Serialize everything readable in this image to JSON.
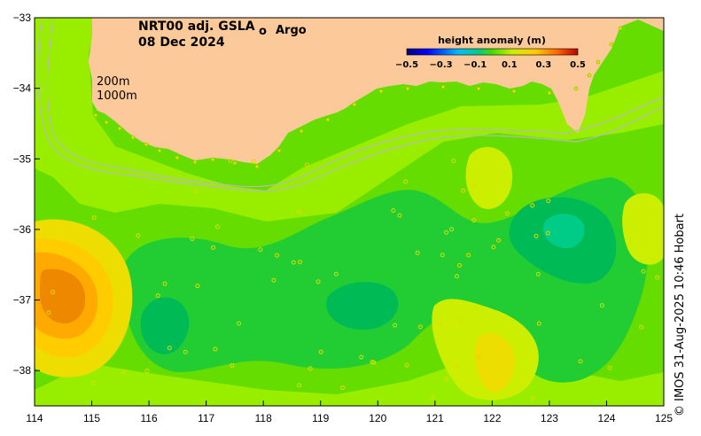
{
  "title": {
    "product": "NRT00 adj. GSLA",
    "date": "08 Dec 2024"
  },
  "argo_legend": {
    "symbol": "o",
    "label": "Argo",
    "color": "#ff00ff"
  },
  "isobath_labels": {
    "shallow": "200m",
    "deep": "1000m"
  },
  "colorbar": {
    "title": "height anomaly (m)",
    "ticks": [
      "−0.5",
      "−0.3",
      "−0.1",
      "0.1",
      "0.3",
      "0.5"
    ],
    "range": [
      -0.5,
      0.5
    ]
  },
  "credit": "© IMOS 31-Aug-2025 10:46 Hobart",
  "chart_data": {
    "type": "heatmap",
    "title": "NRT00 adj. GSLA 08 Dec 2024",
    "variable": "height anomaly (m)",
    "x_axis": {
      "label": "",
      "range": [
        114,
        125
      ],
      "ticks": [
        "114",
        "115",
        "116",
        "117",
        "118",
        "119",
        "120",
        "121",
        "122",
        "123",
        "124",
        "125"
      ]
    },
    "y_axis": {
      "label": "",
      "range": [
        -38.5,
        -33
      ],
      "ticks": [
        "−33",
        "−34",
        "−35",
        "−36",
        "−37",
        "−38"
      ]
    },
    "land_color": "#fcc99b",
    "features": [
      {
        "name": "warm eddy",
        "center": [
          114.6,
          -36.9
        ],
        "value": 0.3
      },
      {
        "name": "cool eddy",
        "center": [
          123.3,
          -36.0
        ],
        "value": -0.15
      },
      {
        "name": "cool patch",
        "center": [
          119.5,
          -37.1
        ],
        "value": -0.1
      },
      {
        "name": "cool patch",
        "center": [
          116.5,
          -37.5
        ],
        "value": -0.1
      },
      {
        "name": "warm patch",
        "center": [
          122.0,
          -35.4
        ],
        "value": 0.12
      },
      {
        "name": "warm patch",
        "center": [
          122.4,
          -38.0
        ],
        "value": 0.15
      }
    ],
    "colors": {
      "base": "#66dd00",
      "light": "#99ee00",
      "mid_dark": "#22cc33",
      "dark": "#00bb55",
      "teal": "#00cc88",
      "yellow_green": "#ccee00",
      "yellow": "#eedd00",
      "orange_light": "#ffcc00",
      "orange": "#ffaa00",
      "orange_deep": "#ee8800"
    }
  }
}
